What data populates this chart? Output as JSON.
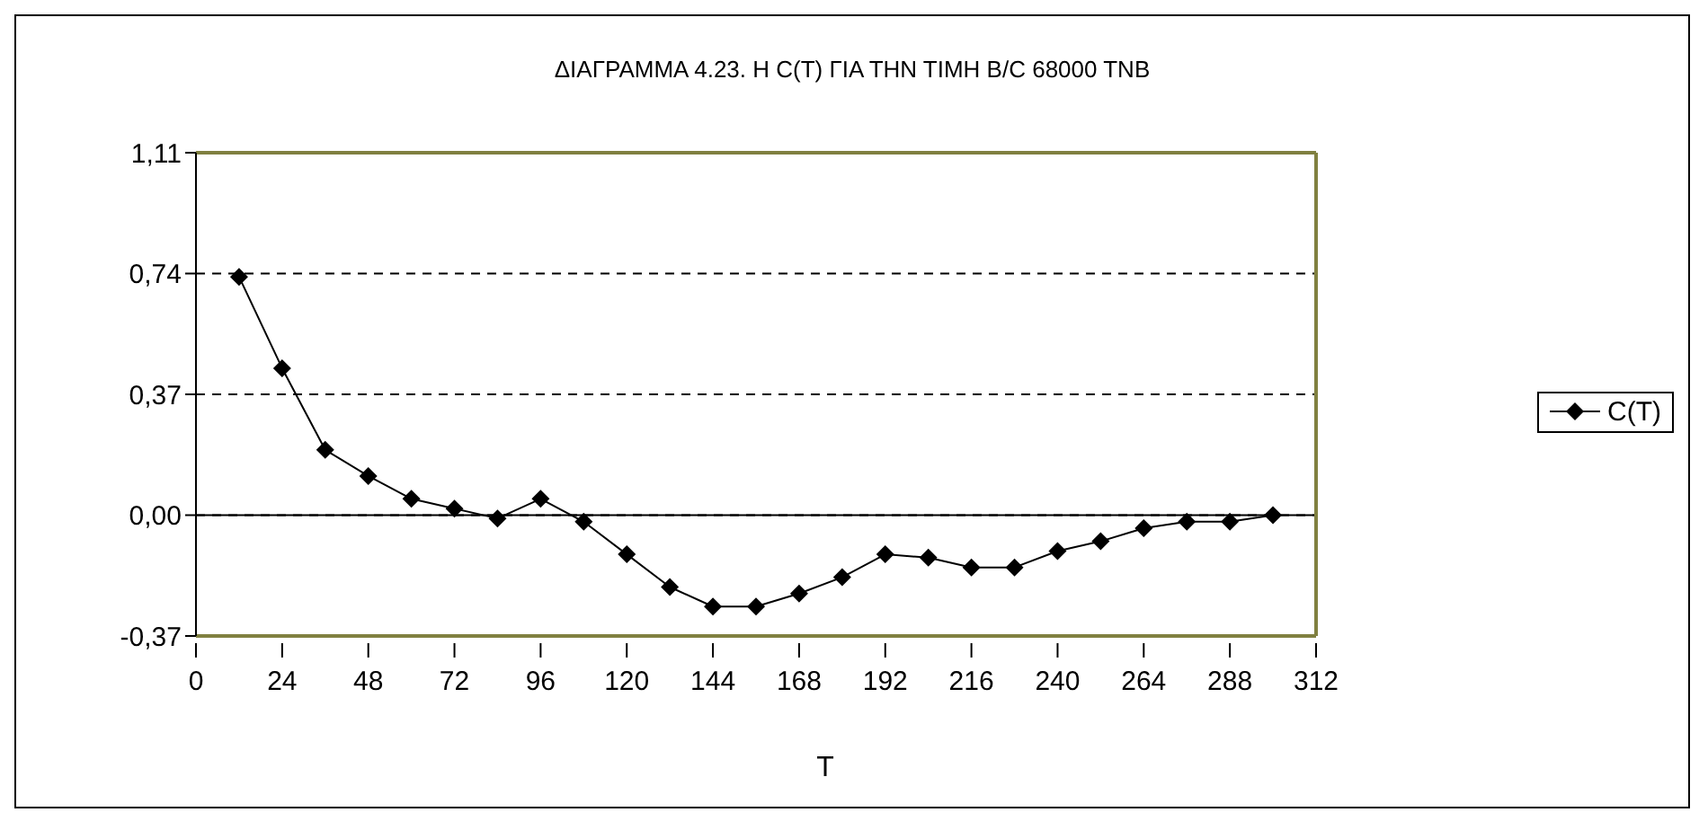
{
  "chart_data": {
    "type": "line",
    "title": "ΔΙΑΓΡΑΜΜΑ 4.23. Η C(T) ΓΙΑ ΤΗΝ ΤΙΜΗ Β/C 68000 TNB",
    "xlabel": "T",
    "x": [
      12,
      24,
      36,
      48,
      60,
      72,
      84,
      96,
      108,
      120,
      132,
      144,
      156,
      168,
      180,
      192,
      204,
      216,
      228,
      240,
      252,
      264,
      276,
      288,
      300
    ],
    "series": [
      {
        "name": "C(T)",
        "color": "#000000",
        "values": [
          0.73,
          0.45,
          0.2,
          0.12,
          0.05,
          0.02,
          -0.01,
          0.05,
          -0.02,
          -0.12,
          -0.22,
          -0.28,
          -0.28,
          -0.24,
          -0.19,
          -0.12,
          -0.13,
          -0.16,
          -0.16,
          -0.11,
          -0.08,
          -0.04,
          -0.02,
          -0.02,
          0.0
        ]
      }
    ],
    "xlim": [
      0,
      312
    ],
    "xticks": [
      0,
      24,
      48,
      72,
      96,
      120,
      144,
      168,
      192,
      216,
      240,
      264,
      288,
      312
    ],
    "ylim": [
      -0.37,
      1.11
    ],
    "yticks": [
      {
        "value": -0.37,
        "label": "-0,37"
      },
      {
        "value": 0,
        "label": "0,00"
      },
      {
        "value": 0.37,
        "label": "0,37"
      },
      {
        "value": 0.74,
        "label": "0,74"
      },
      {
        "value": 1.11,
        "label": "1,11"
      }
    ],
    "grid": "y",
    "legend": "right",
    "marker": "diamond",
    "line_style": "solid"
  }
}
